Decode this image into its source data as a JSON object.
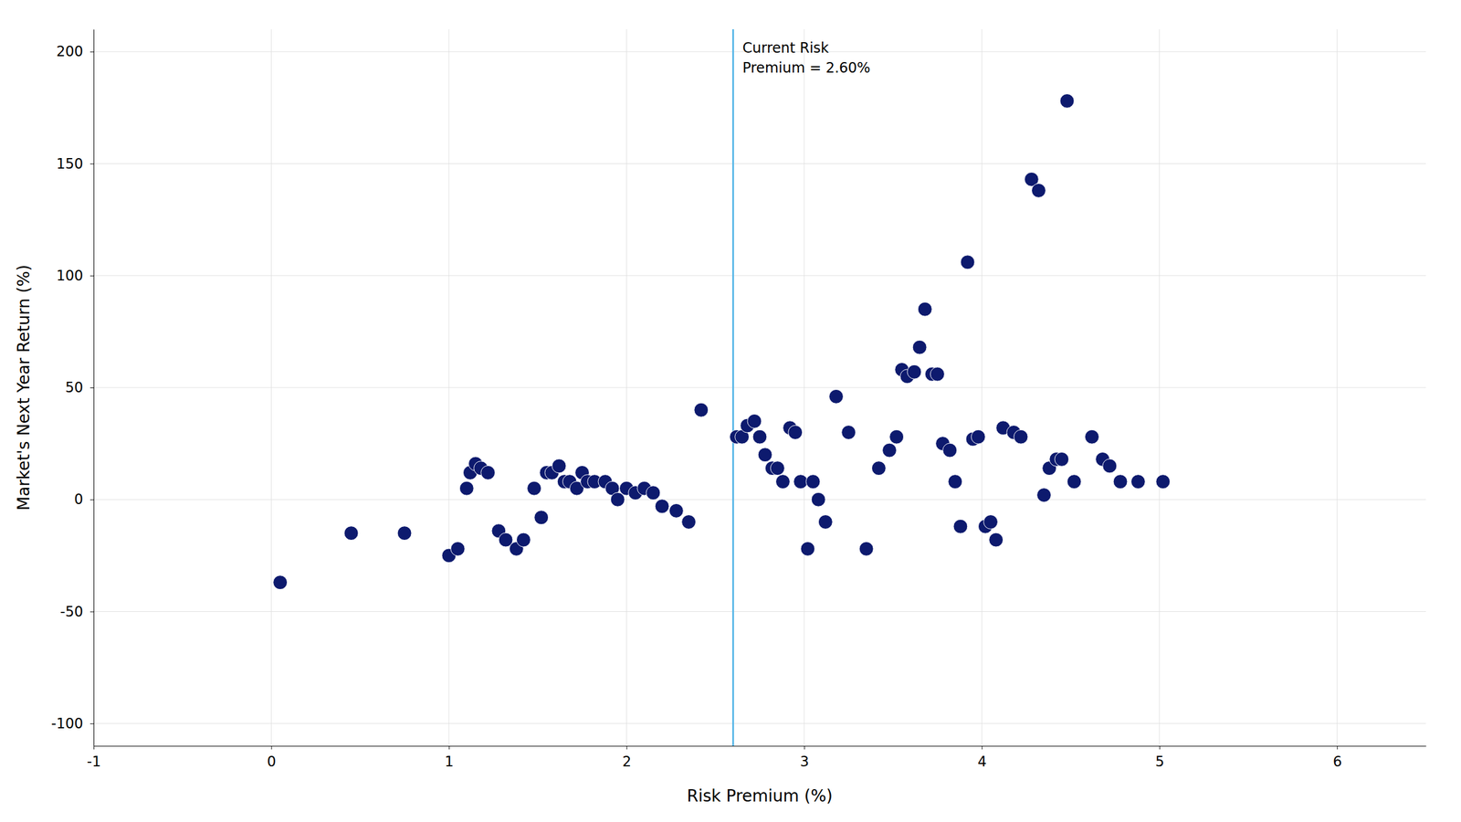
{
  "chart_data": {
    "type": "scatter",
    "xlabel": "Risk Premium (%)",
    "ylabel": "Market's Next Year Return (%)",
    "color": "#0D1A6E",
    "grid": true,
    "xlim": [
      -1,
      6.5
    ],
    "ylim": [
      -110,
      210
    ],
    "xticks": [
      -1,
      0,
      1,
      2,
      3,
      4,
      5,
      6
    ],
    "yticks": [
      -100,
      -50,
      0,
      50,
      100,
      150,
      200
    ],
    "reference_lines": [
      {
        "x": 2.6,
        "color": "#5BB8E8"
      }
    ],
    "annotation": "Current Risk\nPremium = 2.60%",
    "x": [
      0.05,
      0.45,
      0.75,
      1.0,
      1.05,
      1.1,
      1.12,
      1.15,
      1.18,
      1.22,
      1.28,
      1.32,
      1.38,
      1.42,
      1.48,
      1.52,
      1.55,
      1.58,
      1.62,
      1.65,
      1.68,
      1.72,
      1.75,
      1.78,
      1.82,
      1.88,
      1.92,
      1.95,
      2.0,
      2.05,
      2.1,
      2.15,
      2.2,
      2.28,
      2.35,
      2.42,
      2.62,
      2.65,
      2.68,
      2.72,
      2.75,
      2.78,
      2.82,
      2.85,
      2.88,
      2.92,
      2.95,
      2.98,
      3.02,
      3.05,
      3.08,
      3.12,
      3.18,
      3.25,
      3.35,
      3.42,
      3.48,
      3.52,
      3.55,
      3.58,
      3.62,
      3.65,
      3.68,
      3.72,
      3.75,
      3.78,
      3.82,
      3.85,
      3.88,
      3.92,
      3.95,
      3.98,
      4.02,
      4.05,
      4.08,
      4.12,
      4.18,
      4.22,
      4.28,
      4.32,
      4.35,
      4.38,
      4.42,
      4.45,
      4.48,
      4.52,
      4.62,
      4.68,
      4.72,
      4.78,
      4.88,
      5.02
    ],
    "values": [
      -37,
      -15,
      -15,
      -25,
      -22,
      5,
      12,
      16,
      14,
      12,
      -14,
      -18,
      -22,
      -18,
      5,
      -8,
      12,
      12,
      15,
      8,
      8,
      5,
      12,
      8,
      8,
      8,
      5,
      0,
      5,
      3,
      5,
      3,
      -3,
      -5,
      -10,
      40,
      28,
      28,
      33,
      35,
      28,
      20,
      14,
      14,
      8,
      32,
      30,
      8,
      -22,
      8,
      0,
      -10,
      46,
      30,
      -22,
      14,
      22,
      28,
      58,
      55,
      57,
      68,
      85,
      56,
      56,
      25,
      22,
      8,
      -12,
      106,
      27,
      28,
      -12,
      -10,
      -18,
      32,
      30,
      28,
      143,
      138,
      2,
      14,
      18,
      18,
      178,
      8,
      28,
      18,
      15,
      8,
      8,
      8
    ]
  }
}
